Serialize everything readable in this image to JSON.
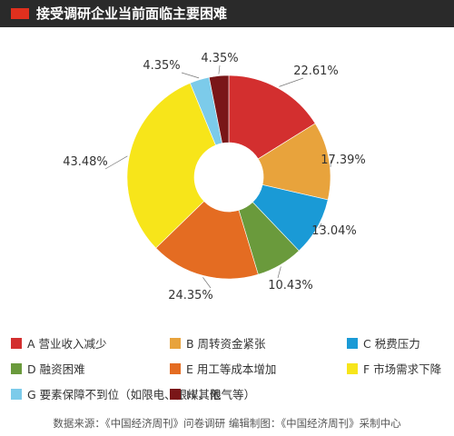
{
  "header": {
    "title": "接受调研企业当前面临主要困难",
    "accent_color": "#e0301e",
    "bar_color": "#2a2a2a"
  },
  "chart_data": {
    "type": "pie",
    "title": "接受调研企业当前面临主要困难",
    "donut": true,
    "slices": [
      {
        "key": "A",
        "label": "A 营业收入减少",
        "value": 22.61,
        "display": "22.61%",
        "color": "#d32f2f"
      },
      {
        "key": "B",
        "label": "B 周转资金紧张",
        "value": 17.39,
        "display": "17.39%",
        "color": "#e8a33c"
      },
      {
        "key": "C",
        "label": "C 税费压力",
        "value": 13.04,
        "display": "13.04%",
        "color": "#1a9ad6"
      },
      {
        "key": "D",
        "label": "D 融资困难",
        "value": 10.43,
        "display": "10.43%",
        "color": "#6a9a3c"
      },
      {
        "key": "E",
        "label": "E 用工等成本增加",
        "value": 24.35,
        "display": "24.35%",
        "color": "#e46c22"
      },
      {
        "key": "F",
        "label": "F 市场需求下降",
        "value": 43.48,
        "display": "43.48%",
        "color": "#f7e51a"
      },
      {
        "key": "G",
        "label": "G 要素保障不到位（如限电、限煤、限气等）",
        "value": 4.35,
        "display": "4.35%",
        "color": "#7ccbea"
      },
      {
        "key": "H",
        "label": "H 其他",
        "value": 4.35,
        "display": "4.35%",
        "color": "#7a1618"
      }
    ]
  },
  "footer": {
    "source": "数据来源：《中国经济周刊》问卷调研    编辑制图：《中国经济周刊》采制中心"
  }
}
